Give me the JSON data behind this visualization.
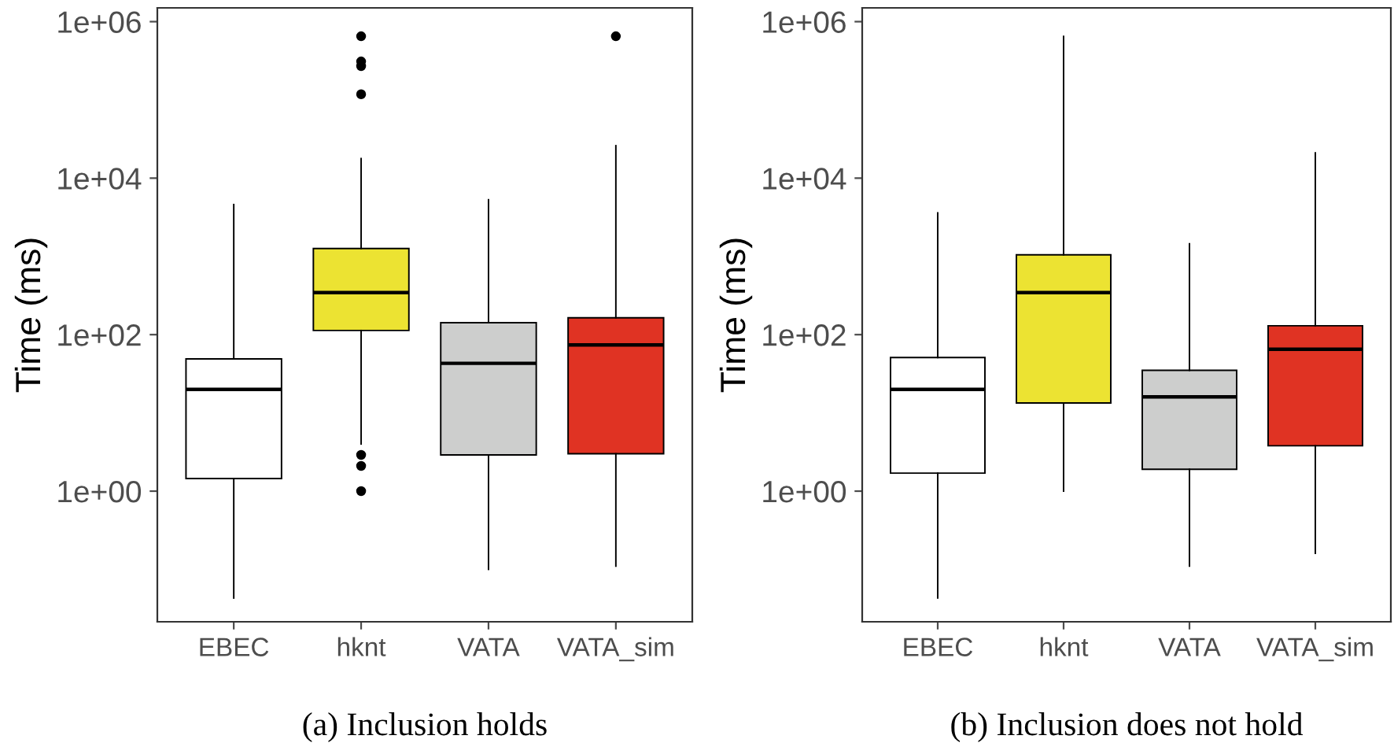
{
  "chart_data": [
    {
      "type": "box",
      "ylabel": "Time (ms)",
      "categories": [
        "EBEC",
        "hknt",
        "VATA",
        "VATA_sim"
      ],
      "colors": [
        "#ffffff",
        "#ece332",
        "#cdcecd",
        "#e03323"
      ],
      "log": "y",
      "grid": false,
      "ylim": [
        0.0214,
        1500000
      ],
      "yticks": [
        {
          "value": 1,
          "label": "1e+00"
        },
        {
          "value": 100,
          "label": "1e+02"
        },
        {
          "value": 10000,
          "label": "1e+04"
        },
        {
          "value": 1000000,
          "label": "1e+06"
        }
      ],
      "boxes": [
        {
          "low": 0.043,
          "q1": 1.45,
          "median": 20,
          "q3": 49,
          "high": 4600
        },
        {
          "low": 4,
          "q1": 113,
          "median": 345,
          "q3": 1260,
          "high": 17800,
          "outliers": [
            650000,
            310000,
            270000,
            118000,
            2.9,
            2.1,
            1.0
          ]
        },
        {
          "low": 0.1,
          "q1": 2.9,
          "median": 43,
          "q3": 142,
          "high": 5300
        },
        {
          "low": 0.11,
          "q1": 3.0,
          "median": 74,
          "q3": 164,
          "high": 26000,
          "outliers": [
            650000
          ]
        }
      ],
      "annotations": [
        "(a) Inclusion holds"
      ]
    },
    {
      "type": "box",
      "ylabel": "Time (ms)",
      "categories": [
        "EBEC",
        "hknt",
        "VATA",
        "VATA_sim"
      ],
      "colors": [
        "#ffffff",
        "#ece332",
        "#cdcecd",
        "#e03323"
      ],
      "log": "y",
      "grid": false,
      "ylim": [
        0.0214,
        1500000
      ],
      "yticks": [
        {
          "value": 1,
          "label": "1e+00"
        },
        {
          "value": 100,
          "label": "1e+02"
        },
        {
          "value": 10000,
          "label": "1e+04"
        },
        {
          "value": 1000000,
          "label": "1e+06"
        }
      ],
      "boxes": [
        {
          "low": 0.043,
          "q1": 1.7,
          "median": 20,
          "q3": 51,
          "high": 3600
        },
        {
          "low": 1.0,
          "q1": 13.4,
          "median": 345,
          "q3": 1050,
          "high": 650000
        },
        {
          "low": 0.11,
          "q1": 1.9,
          "median": 16,
          "q3": 35,
          "high": 1450
        },
        {
          "low": 0.16,
          "q1": 3.8,
          "median": 65,
          "q3": 130,
          "high": 21000
        }
      ],
      "annotations": [
        "(b) Inclusion does not hold"
      ]
    }
  ]
}
